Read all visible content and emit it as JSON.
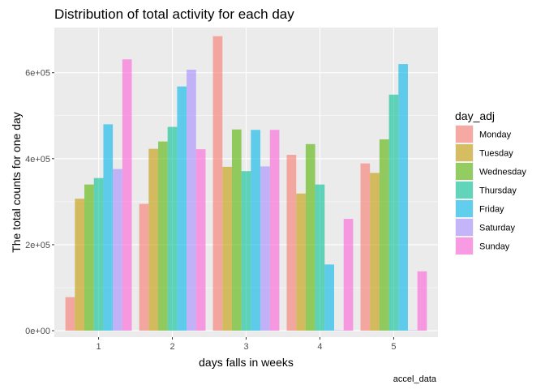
{
  "chart_data": {
    "type": "bar",
    "title": "Distribution of total activity for each day",
    "xlabel": "days falls in weeks",
    "ylabel": "The total counts for one day",
    "caption": "accel_data",
    "categories": [
      "1",
      "2",
      "3",
      "4",
      "5"
    ],
    "ylim": [
      -15000,
      705000
    ],
    "yticks": [
      0,
      200000,
      400000,
      600000
    ],
    "ytick_labels": [
      "0e+00",
      "2e+05",
      "4e+05",
      "6e+05"
    ],
    "grid": true,
    "legend": {
      "title": "day_adj",
      "position": "right"
    },
    "series": [
      {
        "name": "Monday",
        "color": "#F8766D",
        "values": [
          78000,
          295000,
          685000,
          409000,
          389000
        ]
      },
      {
        "name": "Tuesday",
        "color": "#C49A00",
        "values": [
          307000,
          423000,
          381000,
          319000,
          367000
        ]
      },
      {
        "name": "Wednesday",
        "color": "#53B400",
        "values": [
          340000,
          440000,
          468000,
          434000,
          445000
        ]
      },
      {
        "name": "Thursday",
        "color": "#00C094",
        "values": [
          355000,
          474000,
          371000,
          340000,
          549000
        ]
      },
      {
        "name": "Friday",
        "color": "#00B6EB",
        "values": [
          480000,
          568000,
          467000,
          154000,
          620000
        ]
      },
      {
        "name": "Saturday",
        "color": "#A58AFF",
        "values": [
          376000,
          607000,
          382000,
          1000,
          1000
        ]
      },
      {
        "name": "Sunday",
        "color": "#FB61D7",
        "values": [
          631000,
          422000,
          467000,
          260000,
          138000
        ]
      }
    ]
  }
}
